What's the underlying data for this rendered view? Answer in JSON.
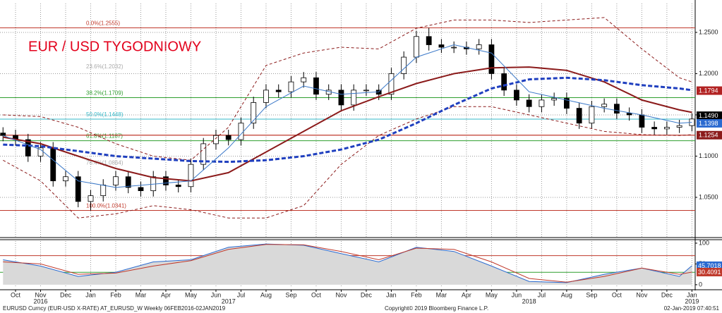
{
  "chart_data": {
    "type": "candlestick",
    "title": "EUR / USD TYGODNIOWY",
    "x": [
      -0.5,
      0,
      0.5,
      1,
      1.5,
      2,
      2.5,
      3,
      3.5,
      4,
      4.5,
      5,
      5.5,
      6,
      6.5,
      7,
      7.5,
      8,
      8.5,
      9,
      9.5,
      10,
      10.5,
      11,
      11.5,
      12,
      12.5,
      13,
      13.5,
      14,
      14.5,
      15,
      15.5,
      16,
      16.5,
      17,
      17.5,
      18,
      18.5,
      19,
      19.5,
      20,
      20.5,
      21,
      21.5,
      22,
      22.5,
      23,
      23.5,
      24,
      24.5,
      25,
      25.5,
      26,
      26.5,
      27
    ],
    "open": [
      1.128,
      1.125,
      1.12,
      1.1,
      1.11,
      1.07,
      1.075,
      1.045,
      1.052,
      1.065,
      1.075,
      1.062,
      1.058,
      1.075,
      1.065,
      1.063,
      1.09,
      1.115,
      1.125,
      1.12,
      1.14,
      1.165,
      1.18,
      1.178,
      1.19,
      1.195,
      1.175,
      1.18,
      1.162,
      1.18,
      1.18,
      1.175,
      1.2,
      1.22,
      1.245,
      1.235,
      1.232,
      1.232,
      1.23,
      1.235,
      1.2,
      1.18,
      1.168,
      1.16,
      1.168,
      1.17,
      1.158,
      1.14,
      1.16,
      1.163,
      1.152,
      1.15,
      1.135,
      1.133,
      1.135,
      1.137
    ],
    "high": [
      1.135,
      1.132,
      1.127,
      1.117,
      1.117,
      1.082,
      1.082,
      1.059,
      1.072,
      1.082,
      1.082,
      1.069,
      1.082,
      1.082,
      1.072,
      1.097,
      1.122,
      1.132,
      1.132,
      1.147,
      1.172,
      1.187,
      1.187,
      1.197,
      1.202,
      1.202,
      1.187,
      1.187,
      1.187,
      1.187,
      1.187,
      1.207,
      1.227,
      1.252,
      1.2555,
      1.242,
      1.239,
      1.239,
      1.242,
      1.242,
      1.207,
      1.187,
      1.175,
      1.175,
      1.177,
      1.177,
      1.165,
      1.167,
      1.17,
      1.17,
      1.159,
      1.157,
      1.142,
      1.142,
      1.144,
      1.152
    ],
    "low": [
      1.118,
      1.113,
      1.093,
      1.093,
      1.063,
      1.063,
      1.038,
      1.0341,
      1.045,
      1.058,
      1.055,
      1.051,
      1.051,
      1.058,
      1.056,
      1.056,
      1.083,
      1.108,
      1.113,
      1.113,
      1.133,
      1.158,
      1.171,
      1.171,
      1.183,
      1.168,
      1.168,
      1.155,
      1.155,
      1.173,
      1.168,
      1.168,
      1.193,
      1.213,
      1.228,
      1.225,
      1.225,
      1.223,
      1.223,
      1.193,
      1.173,
      1.161,
      1.153,
      1.153,
      1.161,
      1.151,
      1.133,
      1.133,
      1.153,
      1.145,
      1.143,
      1.128,
      1.126,
      1.126,
      1.128,
      1.13
    ],
    "close": [
      1.125,
      1.12,
      1.1,
      1.11,
      1.07,
      1.075,
      1.045,
      1.052,
      1.065,
      1.075,
      1.062,
      1.058,
      1.075,
      1.065,
      1.063,
      1.09,
      1.115,
      1.125,
      1.12,
      1.14,
      1.165,
      1.18,
      1.178,
      1.19,
      1.195,
      1.175,
      1.18,
      1.162,
      1.18,
      1.18,
      1.175,
      1.2,
      1.22,
      1.245,
      1.235,
      1.232,
      1.232,
      1.23,
      1.235,
      1.2,
      1.18,
      1.168,
      1.16,
      1.168,
      1.17,
      1.158,
      1.14,
      1.16,
      1.163,
      1.152,
      1.15,
      1.135,
      1.133,
      1.135,
      1.137,
      1.145
    ],
    "up_color": "#ffffff",
    "down_color": "#000000",
    "xlim": [
      -0.62,
      27.13
    ],
    "xticks": [
      {
        "value": 0,
        "label": "Oct"
      },
      {
        "value": 1,
        "label": "Nov"
      },
      {
        "value": 2,
        "label": "Dec"
      },
      {
        "value": 3,
        "label": "Jan"
      },
      {
        "value": 4,
        "label": "Feb"
      },
      {
        "value": 5,
        "label": "Mar"
      },
      {
        "value": 6,
        "label": "Apr"
      },
      {
        "value": 7,
        "label": "May"
      },
      {
        "value": 8,
        "label": "Jun"
      },
      {
        "value": 9,
        "label": "Jul"
      },
      {
        "value": 10,
        "label": "Aug"
      },
      {
        "value": 11,
        "label": "Sep"
      },
      {
        "value": 12,
        "label": "Oct"
      },
      {
        "value": 13,
        "label": "Nov"
      },
      {
        "value": 14,
        "label": "Dec"
      },
      {
        "value": 15,
        "label": "Jan"
      },
      {
        "value": 16,
        "label": "Feb"
      },
      {
        "value": 17,
        "label": "Mar"
      },
      {
        "value": 18,
        "label": "Apr"
      },
      {
        "value": 19,
        "label": "May"
      },
      {
        "value": 20,
        "label": "Jun"
      },
      {
        "value": 21,
        "label": "Jul"
      },
      {
        "value": 22,
        "label": "Aug"
      },
      {
        "value": 23,
        "label": "Sep"
      },
      {
        "value": 24,
        "label": "Oct"
      },
      {
        "value": 25,
        "label": "Nov"
      },
      {
        "value": 26,
        "label": "Dec"
      },
      {
        "value": 27,
        "label": "Jan"
      }
    ],
    "year_ticks": [
      {
        "value": 1,
        "label": "2016"
      },
      {
        "value": 8.5,
        "label": "2017"
      },
      {
        "value": 20.5,
        "label": "2018"
      },
      {
        "value": 27,
        "label": "2019"
      }
    ],
    "ylim": [
      1.0021,
      1.285
    ],
    "yticks": [
      {
        "value": 1.05,
        "label": "1.0500"
      },
      {
        "value": 1.1,
        "label": "1.1000"
      },
      {
        "value": 1.15,
        "label": "1.1500"
      },
      {
        "value": 1.2,
        "label": "1.2000"
      },
      {
        "value": 1.25,
        "label": "1.2500"
      }
    ],
    "grid": true,
    "overlay_x": [
      -0.5,
      1,
      2.5,
      4,
      5.5,
      7,
      8.5,
      10,
      11.5,
      13,
      14.5,
      16,
      17.5,
      19,
      20.5,
      22,
      23.5,
      25,
      26.5,
      27
    ],
    "overlays": [
      {
        "color": "#8b1a1a",
        "dash": "4,3",
        "width": 1,
        "values": [
          1.15,
          1.148,
          1.135,
          1.115,
          1.1,
          1.095,
          1.135,
          1.21,
          1.225,
          1.232,
          1.23,
          1.255,
          1.265,
          1.265,
          1.262,
          1.265,
          1.268,
          1.23,
          1.195,
          1.19
        ]
      },
      {
        "color": "#8b1a1a",
        "dash": "4,3",
        "width": 1,
        "values": [
          1.095,
          1.07,
          1.025,
          1.03,
          1.04,
          1.035,
          1.025,
          1.025,
          1.04,
          1.09,
          1.125,
          1.145,
          1.16,
          1.16,
          1.15,
          1.14,
          1.13,
          1.126,
          1.125,
          1.126
        ]
      },
      {
        "color": "#8b1a1a",
        "dash": "none",
        "width": 2,
        "values": [
          1.123,
          1.115,
          1.1,
          1.085,
          1.074,
          1.07,
          1.08,
          1.105,
          1.13,
          1.155,
          1.172,
          1.188,
          1.2,
          1.207,
          1.208,
          1.204,
          1.19,
          1.168,
          1.156,
          1.153
        ]
      },
      {
        "color": "#1f3fbf",
        "dash": "6,3",
        "width": 3,
        "values": [
          1.114,
          1.112,
          1.106,
          1.1,
          1.097,
          1.094,
          1.093,
          1.095,
          1.1,
          1.108,
          1.12,
          1.14,
          1.162,
          1.182,
          1.193,
          1.195,
          1.192,
          1.186,
          1.182,
          1.18
        ]
      },
      {
        "color": "#3a78c8",
        "dash": "none",
        "width": 1,
        "values": [
          1.125,
          1.108,
          1.07,
          1.062,
          1.066,
          1.07,
          1.11,
          1.16,
          1.185,
          1.175,
          1.178,
          1.22,
          1.235,
          1.225,
          1.178,
          1.168,
          1.158,
          1.15,
          1.14,
          1.141
        ]
      }
    ],
    "fib_levels": [
      {
        "label": "0.0%(1.2555)",
        "value": 1.2555,
        "color": "#c0392b",
        "line": true
      },
      {
        "label": "23.6%(1.2032)",
        "value": 1.2032,
        "color": "#aaaaaa",
        "line": false
      },
      {
        "label": "38.2%(1.1709)",
        "value": 1.1709,
        "color": "#2e9e2e",
        "line": true
      },
      {
        "label": "50.0%(1.1448)",
        "value": 1.1448,
        "color": "#33b8c8",
        "line": true
      },
      {
        "label": "61.8%(1.1187)",
        "value": 1.1187,
        "color": "#2e9e2e",
        "line": true
      },
      {
        "label": "76.4%(1.0864)",
        "value": 1.0864,
        "color": "#aaaaaa",
        "line": false
      },
      {
        "label": "100.0%(1.0341)",
        "value": 1.0341,
        "color": "#c0392b",
        "line": true
      }
    ],
    "support_line": {
      "value": 1.1254,
      "color": "#c0392b"
    },
    "price_labels": [
      {
        "value": 1.1794,
        "label": "1.1794",
        "color": "#b22222"
      },
      {
        "value": 1.149,
        "label": "1.1490",
        "color": "#000000"
      },
      {
        "value": 1.1398,
        "label": "1.1398",
        "color": "#2a6ad0"
      },
      {
        "value": 1.1254,
        "label": "1.1254",
        "color": "#8b1a1a"
      }
    ],
    "indicator": {
      "ylim": [
        -7,
        105
      ],
      "yticks": [
        0,
        50,
        100
      ],
      "levels": [
        {
          "value": 70,
          "color": "#c0392b"
        },
        {
          "value": 30,
          "color": "#2e9e2e"
        }
      ],
      "series": [
        {
          "color": "#2a6ad0",
          "fill": "#d9d9d9",
          "values": [
            60,
            45,
            20,
            30,
            55,
            60,
            90,
            98,
            95,
            75,
            55,
            90,
            80,
            45,
            8,
            5,
            25,
            40,
            20,
            45.7018
          ]
        },
        {
          "color": "#c0392b",
          "fill": "none",
          "values": [
            55,
            50,
            25,
            28,
            45,
            58,
            85,
            97,
            96,
            80,
            60,
            88,
            85,
            55,
            15,
            6,
            20,
            40,
            25,
            30.4091
          ]
        }
      ]
    }
  },
  "footer": {
    "security": "EURUSD Curncy (EUR-USD X-RATE) AT_EURUSD_W  Weekly 06FEB2016-02JAN2019",
    "copyright": "Copyright© 2019 Bloomberg Finance L.P.",
    "timestamp": "02-Jan-2019 07:40:51"
  }
}
